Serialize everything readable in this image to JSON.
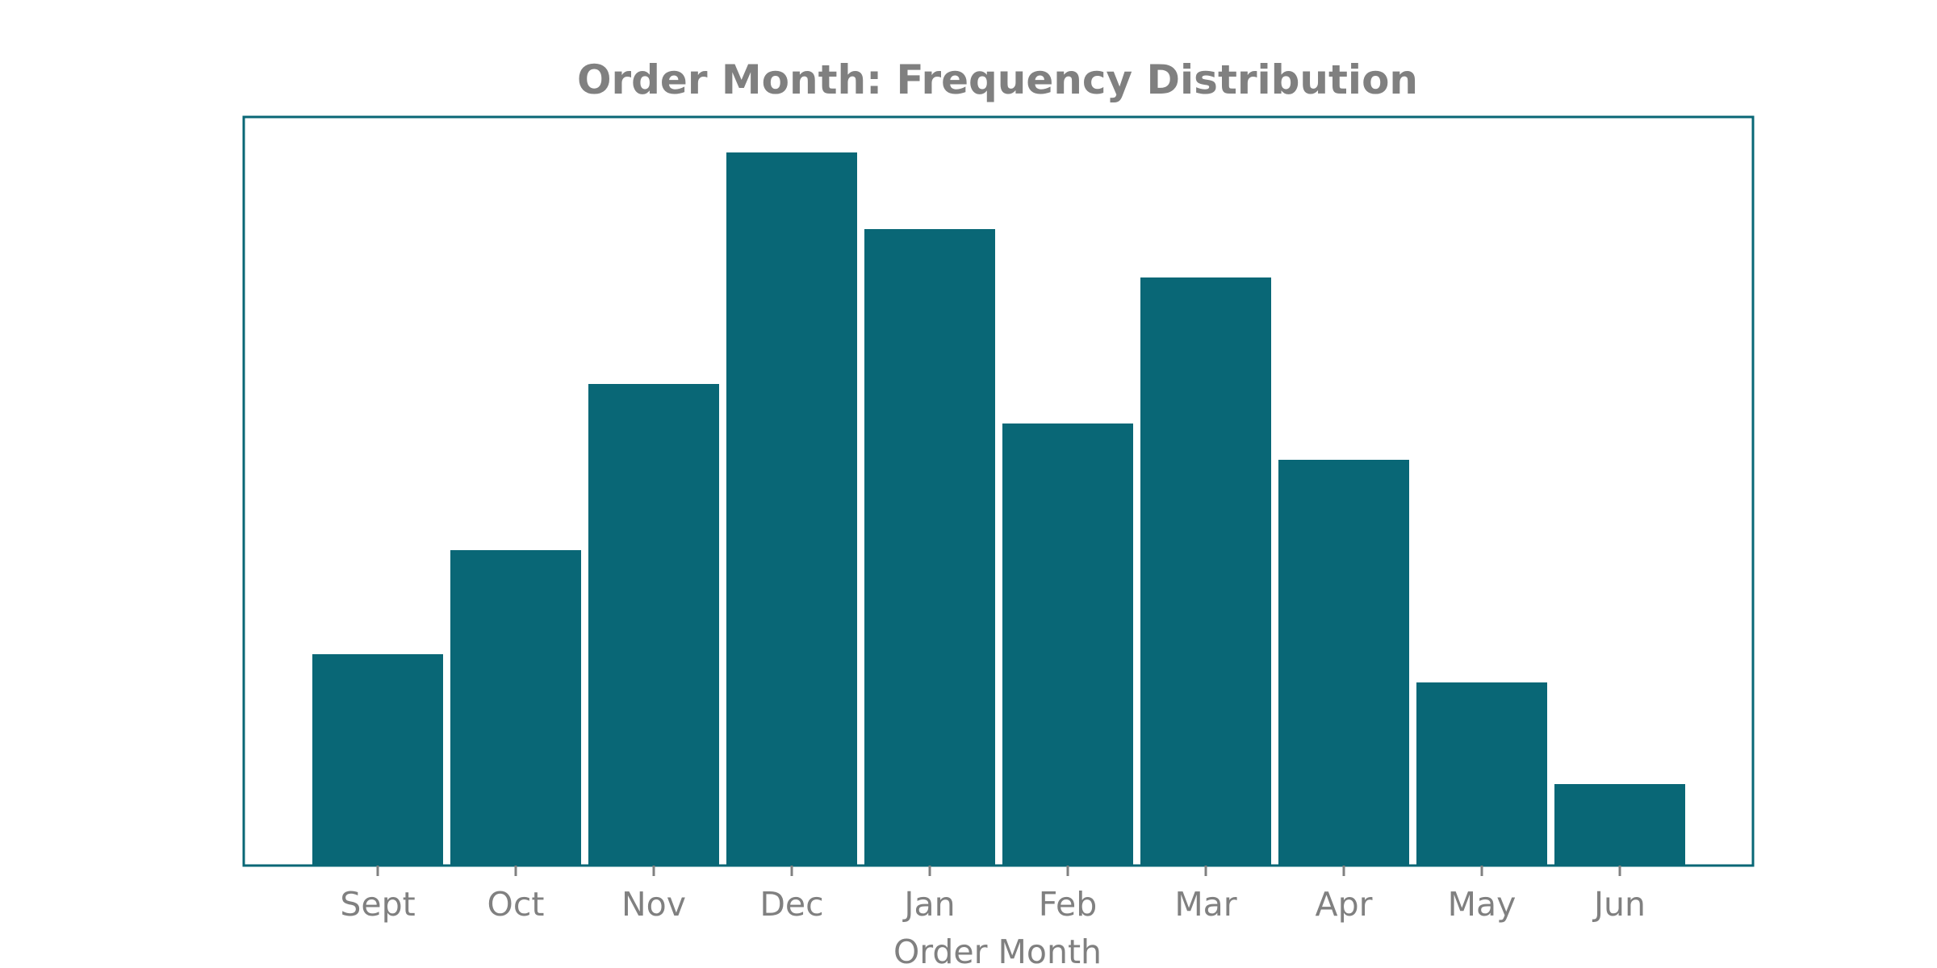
{
  "colors": {
    "bar": "#096776",
    "frame": "#096776",
    "text": "#808080",
    "background": "#ffffff"
  },
  "chart_data": {
    "type": "bar",
    "title": "Order Month: Frequency Distribution",
    "xlabel": "Order Month",
    "ylabel": "",
    "categories": [
      "Sept",
      "Oct",
      "Nov",
      "Dec",
      "Jan",
      "Feb",
      "Mar",
      "Apr",
      "May",
      "Jun"
    ],
    "values": [
      262,
      391,
      597,
      884,
      789,
      548,
      729,
      503,
      227,
      101
    ],
    "ylim": [
      0,
      928
    ],
    "grid": false,
    "legend": "none",
    "y_ticks_visible": false
  }
}
